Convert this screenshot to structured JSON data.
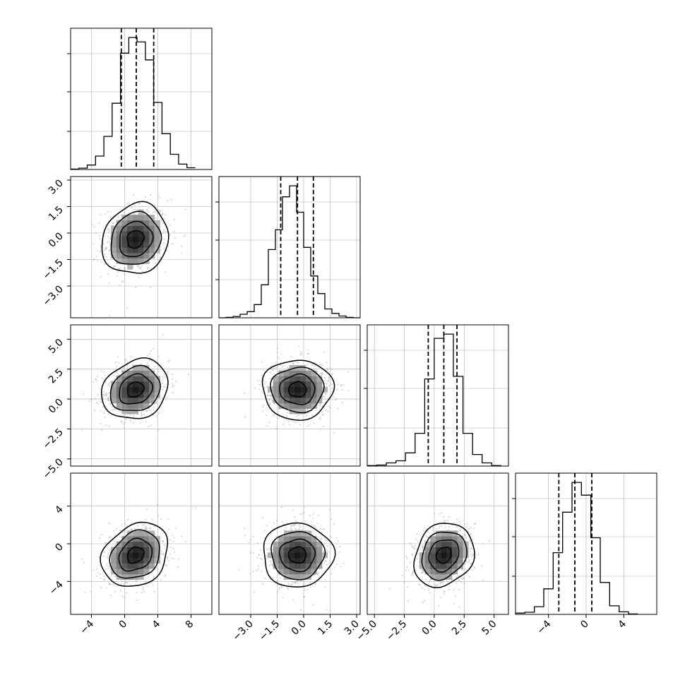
{
  "chart_data": {
    "type": "corner",
    "parameters": 4,
    "grid": true,
    "colors": {
      "ink": "#000000",
      "grid": "#b0b0b0",
      "scatter": "#9a9a9a"
    },
    "axes": [
      {
        "range": [
          -6.5,
          10.5
        ],
        "ticks": [
          -4,
          0,
          4,
          8
        ],
        "tick_labels": [
          "−4",
          "0",
          "4",
          "8"
        ]
      },
      {
        "range": [
          -4.8,
          3.2
        ],
        "ticks": [
          -3.0,
          -1.5,
          0.0,
          1.5,
          3.0
        ],
        "tick_labels": [
          "−3.0",
          "−1.5",
          "0.0",
          "1.5",
          "3.0"
        ]
      },
      {
        "range": [
          -5.6,
          6.2
        ],
        "ticks": [
          -5.0,
          -2.5,
          0.0,
          2.5,
          5.0
        ],
        "tick_labels": [
          "−5.0",
          "−2.5",
          "0.0",
          "2.5",
          "5.0"
        ]
      },
      {
        "range": [
          -7.5,
          7.5
        ],
        "ticks": [
          -4,
          0,
          4
        ],
        "tick_labels": [
          "−4",
          "0",
          "4"
        ]
      }
    ],
    "marginals": [
      {
        "type": "step-histogram",
        "bin_edges": [
          -6.5,
          -5.5,
          -4.5,
          -3.5,
          -2.5,
          -1.5,
          -0.5,
          0.5,
          1.5,
          2.5,
          3.5,
          4.5,
          5.5,
          6.5,
          7.5,
          8.5
        ],
        "counts": [
          1,
          3,
          10,
          30,
          74,
          148,
          260,
          295,
          285,
          245,
          150,
          80,
          34,
          12,
          4
        ],
        "quantiles": [
          -0.4,
          1.4,
          3.5
        ]
      },
      {
        "type": "step-histogram",
        "bin_edges": [
          -4.8,
          -4.4,
          -4.0,
          -3.6,
          -3.2,
          -2.8,
          -2.4,
          -2.0,
          -1.6,
          -1.2,
          -0.8,
          -0.4,
          0.0,
          0.4,
          0.8,
          1.2,
          1.6,
          2.0,
          2.4,
          2.8,
          3.2
        ],
        "counts": [
          0,
          1,
          3,
          8,
          14,
          30,
          75,
          155,
          200,
          275,
          300,
          240,
          160,
          95,
          55,
          20,
          10,
          4,
          1,
          0
        ],
        "quantiles": [
          -1.3,
          -0.35,
          0.55
        ]
      },
      {
        "type": "step-histogram",
        "bin_edges": [
          -5.6,
          -4.8,
          -4.0,
          -3.2,
          -2.4,
          -1.6,
          -0.8,
          0.0,
          0.8,
          1.6,
          2.4,
          3.2,
          4.0,
          4.8,
          5.6
        ],
        "counts": [
          1,
          2,
          6,
          10,
          25,
          62,
          165,
          242,
          250,
          170,
          62,
          22,
          6,
          1
        ],
        "quantiles": [
          -0.5,
          0.8,
          1.9
        ]
      },
      {
        "type": "step-histogram",
        "bin_edges": [
          -7.5,
          -6.5,
          -5.5,
          -4.5,
          -3.5,
          -2.5,
          -1.5,
          -0.5,
          0.5,
          1.5,
          2.5,
          3.5,
          4.5,
          5.5
        ],
        "counts": [
          3,
          5,
          18,
          60,
          145,
          240,
          310,
          280,
          180,
          75,
          20,
          6,
          1
        ],
        "quantiles": [
          -2.9,
          -1.2,
          0.6
        ]
      }
    ],
    "joint": [
      {
        "row": 1,
        "col": 0,
        "center": [
          1.3,
          -0.35
        ],
        "std": [
          2.0,
          1.0
        ],
        "corr": 0.12
      },
      {
        "row": 2,
        "col": 0,
        "center": [
          1.3,
          0.8
        ],
        "std": [
          2.0,
          1.25
        ],
        "corr": 0.18
      },
      {
        "row": 2,
        "col": 1,
        "center": [
          -0.35,
          0.8
        ],
        "std": [
          1.0,
          1.25
        ],
        "corr": 0.0
      },
      {
        "row": 3,
        "col": 0,
        "center": [
          1.3,
          -1.2
        ],
        "std": [
          2.0,
          1.7
        ],
        "corr": 0.22
      },
      {
        "row": 3,
        "col": 1,
        "center": [
          -0.35,
          -1.2
        ],
        "std": [
          1.0,
          1.7
        ],
        "corr": 0.0
      },
      {
        "row": 3,
        "col": 2,
        "center": [
          0.8,
          -1.2
        ],
        "std": [
          1.25,
          1.7
        ],
        "corr": 0.18
      }
    ]
  }
}
